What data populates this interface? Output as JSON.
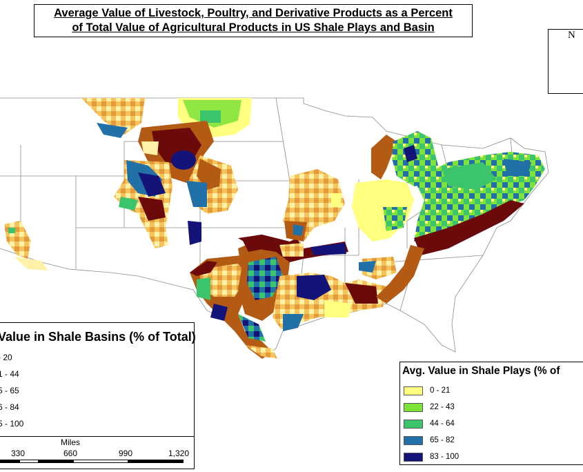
{
  "title": {
    "line1": "Average Value of Livestock, Poultry, and Derivative Products as a Percent",
    "line2": "of Total Value of Agricultural Products in US Shale Plays and Basin"
  },
  "north_arrow": {
    "label": "N"
  },
  "legend_basins": {
    "title": "Value in Shale Basins (% of Total)",
    "classes": [
      "- 20",
      "1 - 44",
      "5 - 65",
      "6 - 84",
      "5 - 100"
    ]
  },
  "legend_plays": {
    "title": "Avg. Value in Shale Plays (% of",
    "classes": [
      {
        "label": "0 - 21",
        "color": "#ffff80"
      },
      {
        "label": "22 - 43",
        "color": "#7de33a"
      },
      {
        "label": "44 - 64",
        "color": "#3cc46c"
      },
      {
        "label": "65 - 82",
        "color": "#2270a8"
      },
      {
        "label": "83 - 100",
        "color": "#141478"
      }
    ]
  },
  "basin_colors": {
    "low": "#fff2a8",
    "low_mid": "#f5c35a",
    "mid": "#e39a3a",
    "mid_high": "#b35a14",
    "high": "#6b0a0a"
  },
  "scale_bar": {
    "units": "Miles",
    "ticks": [
      "330",
      "660",
      "990",
      "1,320"
    ]
  }
}
